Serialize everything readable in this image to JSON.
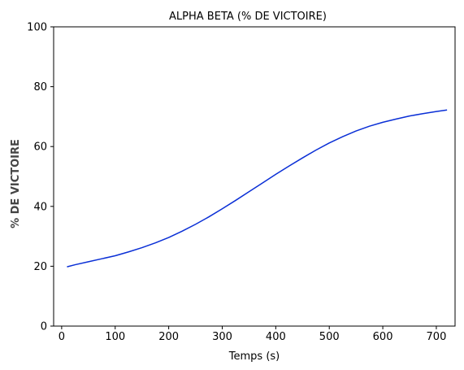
{
  "chart_data": {
    "type": "line",
    "title": "ALPHA BETA (% DE VICTOIRE)",
    "xlabel": "Temps (s)",
    "ylabel": "% DE VICTOIRE",
    "xlim": [
      -15,
      735
    ],
    "ylim": [
      0,
      100
    ],
    "xticks": [
      0,
      100,
      200,
      300,
      400,
      500,
      600,
      700
    ],
    "yticks": [
      0,
      20,
      40,
      60,
      80,
      100
    ],
    "grid": false,
    "series": [
      {
        "color": "#0a2fd6",
        "x": [
          10,
          25,
          50,
          75,
          100,
          125,
          150,
          175,
          200,
          225,
          250,
          275,
          300,
          325,
          350,
          375,
          400,
          425,
          450,
          475,
          500,
          525,
          550,
          575,
          600,
          625,
          650,
          675,
          700,
          720
        ],
        "y": [
          19.8,
          20.5,
          21.5,
          22.5,
          23.5,
          24.8,
          26.2,
          27.8,
          29.6,
          31.7,
          34.0,
          36.5,
          39.2,
          42.0,
          44.9,
          47.8,
          50.7,
          53.5,
          56.2,
          58.8,
          61.2,
          63.3,
          65.2,
          66.8,
          68.1,
          69.2,
          70.2,
          71.0,
          71.7,
          72.2
        ]
      }
    ]
  }
}
